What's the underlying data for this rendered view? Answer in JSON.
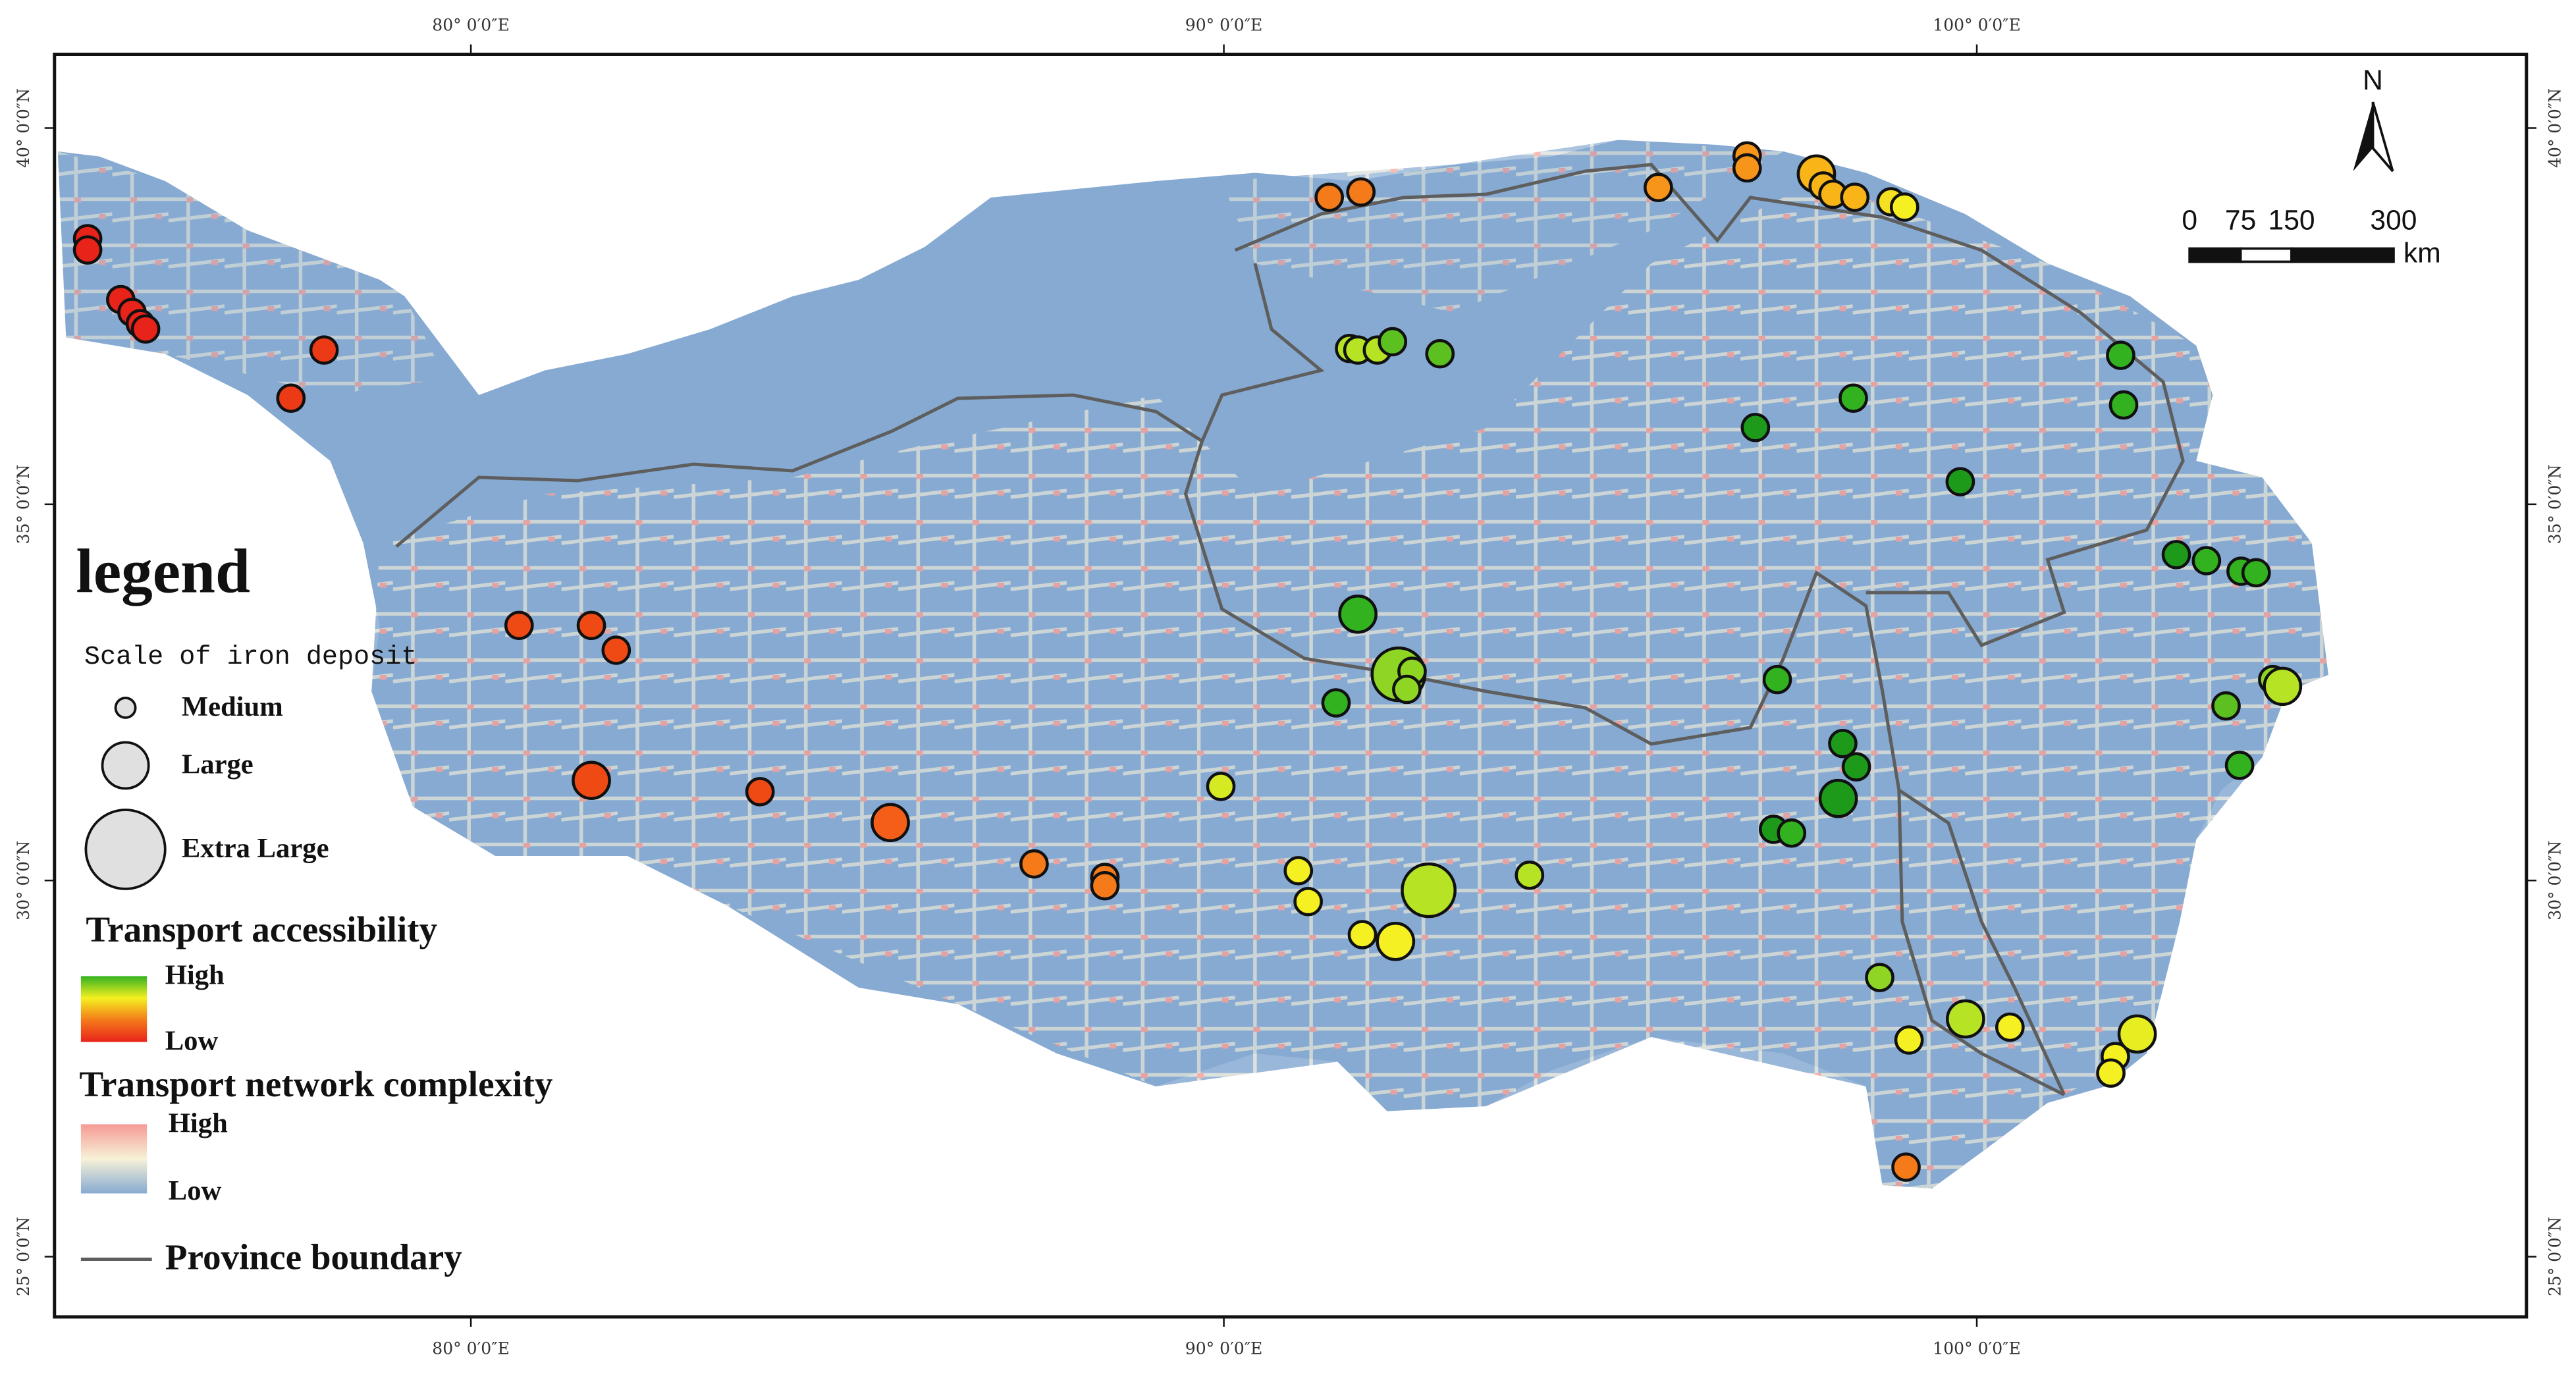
{
  "map": {
    "longitude_ticks": [
      {
        "value": 80,
        "label": "80° 0′0″E"
      },
      {
        "value": 90,
        "label": "90° 0′0″E"
      },
      {
        "value": 100,
        "label": "100° 0′0″E"
      }
    ],
    "latitude_ticks": [
      {
        "value": 40,
        "label": "40° 0′0″N"
      },
      {
        "value": 35,
        "label": "35° 0′0″N"
      },
      {
        "value": 30,
        "label": "30° 0′0″N"
      },
      {
        "value": 25,
        "label": "25° 0′0″N"
      }
    ],
    "xlim": [
      74.47,
      107.3
    ],
    "ylim": [
      24.2,
      40.98
    ],
    "north": "N",
    "scale_bar": {
      "ticks": [
        0,
        75,
        150,
        300
      ],
      "unit": "km"
    },
    "legend": {
      "title": "legend",
      "scale_title": "Scale of iron deposit",
      "scale_items": [
        "Medium",
        "Large",
        "Extra Large"
      ],
      "accessibility": {
        "title": "Transport accessibility",
        "high": "High",
        "low": "Low",
        "colors": [
          "#e8231a",
          "#f47a1a",
          "#f5f021",
          "#33b21f"
        ]
      },
      "complexity": {
        "title": "Transport network complexity",
        "high": "High",
        "low": "Low",
        "colors": [
          "#87aad2",
          "#f7f2d8",
          "#f59a94"
        ]
      },
      "boundary": "Province boundary"
    },
    "deposits": [
      {
        "lon": 74.91,
        "lat": 38.53,
        "size": 0,
        "color": "#e8231a"
      },
      {
        "lon": 74.91,
        "lat": 38.38,
        "size": 0,
        "color": "#e8231a"
      },
      {
        "lon": 75.35,
        "lat": 37.72,
        "size": 0,
        "color": "#e8231a"
      },
      {
        "lon": 75.5,
        "lat": 37.55,
        "size": 0,
        "color": "#e8231a"
      },
      {
        "lon": 75.61,
        "lat": 37.4,
        "size": 0,
        "color": "#e8231a"
      },
      {
        "lon": 75.68,
        "lat": 37.33,
        "size": 0,
        "color": "#e8231a"
      },
      {
        "lon": 78.05,
        "lat": 37.05,
        "size": 0,
        "color": "#ec3a16"
      },
      {
        "lon": 77.61,
        "lat": 36.41,
        "size": 0,
        "color": "#ec3a16"
      },
      {
        "lon": 80.64,
        "lat": 33.39,
        "size": 0,
        "color": "#f04a14"
      },
      {
        "lon": 81.6,
        "lat": 33.39,
        "size": 0,
        "color": "#f04a14"
      },
      {
        "lon": 81.93,
        "lat": 33.06,
        "size": 0,
        "color": "#f04a14"
      },
      {
        "lon": 81.6,
        "lat": 31.33,
        "size": 1,
        "color": "#f04a14"
      },
      {
        "lon": 83.84,
        "lat": 31.18,
        "size": 0,
        "color": "#f04a14"
      },
      {
        "lon": 85.57,
        "lat": 30.77,
        "size": 1,
        "color": "#f45e18"
      },
      {
        "lon": 87.48,
        "lat": 30.22,
        "size": 0,
        "color": "#f47a1a"
      },
      {
        "lon": 88.42,
        "lat": 30.04,
        "size": 0,
        "color": "#f47a1a"
      },
      {
        "lon": 88.42,
        "lat": 29.93,
        "size": 0,
        "color": "#f47a1a"
      },
      {
        "lon": 91.4,
        "lat": 39.08,
        "size": 0,
        "color": "#f47a1a"
      },
      {
        "lon": 91.82,
        "lat": 39.15,
        "size": 0,
        "color": "#f47a1a"
      },
      {
        "lon": 95.77,
        "lat": 39.21,
        "size": 0,
        "color": "#f7941a"
      },
      {
        "lon": 96.95,
        "lat": 39.63,
        "size": 0,
        "color": "#f7941a"
      },
      {
        "lon": 96.95,
        "lat": 39.47,
        "size": 0,
        "color": "#f7941a"
      },
      {
        "lon": 97.87,
        "lat": 39.39,
        "size": 1,
        "color": "#f9b418"
      },
      {
        "lon": 97.96,
        "lat": 39.23,
        "size": 0,
        "color": "#f9b418"
      },
      {
        "lon": 98.09,
        "lat": 39.12,
        "size": 0,
        "color": "#f9b418"
      },
      {
        "lon": 98.38,
        "lat": 39.08,
        "size": 0,
        "color": "#f9b418"
      },
      {
        "lon": 98.86,
        "lat": 39.02,
        "size": 0,
        "color": "#f5e021"
      },
      {
        "lon": 99.04,
        "lat": 38.95,
        "size": 0,
        "color": "#f5f021"
      },
      {
        "lon": 91.67,
        "lat": 37.07,
        "size": 0,
        "color": "#b6e324"
      },
      {
        "lon": 91.78,
        "lat": 37.05,
        "size": 0,
        "color": "#b6e324"
      },
      {
        "lon": 92.04,
        "lat": 37.05,
        "size": 0,
        "color": "#b6e324"
      },
      {
        "lon": 92.24,
        "lat": 37.16,
        "size": 0,
        "color": "#5cc021"
      },
      {
        "lon": 92.87,
        "lat": 37.0,
        "size": 0,
        "color": "#5cc021"
      },
      {
        "lon": 101.91,
        "lat": 36.98,
        "size": 0,
        "color": "#33b21f"
      },
      {
        "lon": 101.95,
        "lat": 36.32,
        "size": 0,
        "color": "#33b21f"
      },
      {
        "lon": 98.36,
        "lat": 36.41,
        "size": 0,
        "color": "#33b21f"
      },
      {
        "lon": 97.06,
        "lat": 36.02,
        "size": 0,
        "color": "#1e9a1a"
      },
      {
        "lon": 99.78,
        "lat": 35.3,
        "size": 0,
        "color": "#1e9a1a"
      },
      {
        "lon": 102.65,
        "lat": 34.33,
        "size": 0,
        "color": "#1e9a1a"
      },
      {
        "lon": 103.05,
        "lat": 34.25,
        "size": 0,
        "color": "#33b21f"
      },
      {
        "lon": 103.51,
        "lat": 34.11,
        "size": 0,
        "color": "#33b21f"
      },
      {
        "lon": 103.71,
        "lat": 34.09,
        "size": 0,
        "color": "#33b21f"
      },
      {
        "lon": 91.78,
        "lat": 33.54,
        "size": 1,
        "color": "#33b21f"
      },
      {
        "lon": 92.32,
        "lat": 32.74,
        "size": 2,
        "color": "#8fd624"
      },
      {
        "lon": 92.5,
        "lat": 32.78,
        "size": 0,
        "color": "#8fd624"
      },
      {
        "lon": 92.43,
        "lat": 32.54,
        "size": 0,
        "color": "#8fd624"
      },
      {
        "lon": 91.49,
        "lat": 32.36,
        "size": 0,
        "color": "#33b21f"
      },
      {
        "lon": 97.35,
        "lat": 32.67,
        "size": 0,
        "color": "#33b21f"
      },
      {
        "lon": 98.22,
        "lat": 31.82,
        "size": 0,
        "color": "#1e9a1a"
      },
      {
        "lon": 98.4,
        "lat": 31.51,
        "size": 0,
        "color": "#1e9a1a"
      },
      {
        "lon": 98.16,
        "lat": 31.09,
        "size": 1,
        "color": "#1e9a1a"
      },
      {
        "lon": 97.3,
        "lat": 30.68,
        "size": 0,
        "color": "#1e9a1a"
      },
      {
        "lon": 97.54,
        "lat": 30.63,
        "size": 0,
        "color": "#33b21f"
      },
      {
        "lon": 103.93,
        "lat": 32.67,
        "size": 0,
        "color": "#8fd624"
      },
      {
        "lon": 104.06,
        "lat": 32.58,
        "size": 1,
        "color": "#b6e324"
      },
      {
        "lon": 103.31,
        "lat": 32.32,
        "size": 0,
        "color": "#5cc021"
      },
      {
        "lon": 103.49,
        "lat": 31.53,
        "size": 0,
        "color": "#33b21f"
      },
      {
        "lon": 89.96,
        "lat": 31.25,
        "size": 0,
        "color": "#d6ea24"
      },
      {
        "lon": 90.99,
        "lat": 30.13,
        "size": 0,
        "color": "#f5f021"
      },
      {
        "lon": 91.12,
        "lat": 29.72,
        "size": 0,
        "color": "#f5f021"
      },
      {
        "lon": 92.72,
        "lat": 29.87,
        "size": 2,
        "color": "#b6e324"
      },
      {
        "lon": 94.06,
        "lat": 30.07,
        "size": 0,
        "color": "#b6e324"
      },
      {
        "lon": 91.84,
        "lat": 29.28,
        "size": 0,
        "color": "#f5f021"
      },
      {
        "lon": 92.28,
        "lat": 29.19,
        "size": 1,
        "color": "#f5f021"
      },
      {
        "lon": 98.71,
        "lat": 28.71,
        "size": 0,
        "color": "#8fd624"
      },
      {
        "lon": 99.85,
        "lat": 28.16,
        "size": 1,
        "color": "#b6e324"
      },
      {
        "lon": 99.1,
        "lat": 27.88,
        "size": 0,
        "color": "#f5f021"
      },
      {
        "lon": 100.44,
        "lat": 28.05,
        "size": 0,
        "color": "#f5f021"
      },
      {
        "lon": 102.13,
        "lat": 27.96,
        "size": 1,
        "color": "#e6ee21"
      },
      {
        "lon": 101.84,
        "lat": 27.66,
        "size": 0,
        "color": "#f5f021"
      },
      {
        "lon": 101.78,
        "lat": 27.44,
        "size": 0,
        "color": "#f5f021"
      },
      {
        "lon": 99.06,
        "lat": 26.19,
        "size": 0,
        "color": "#f47a1a"
      }
    ]
  }
}
